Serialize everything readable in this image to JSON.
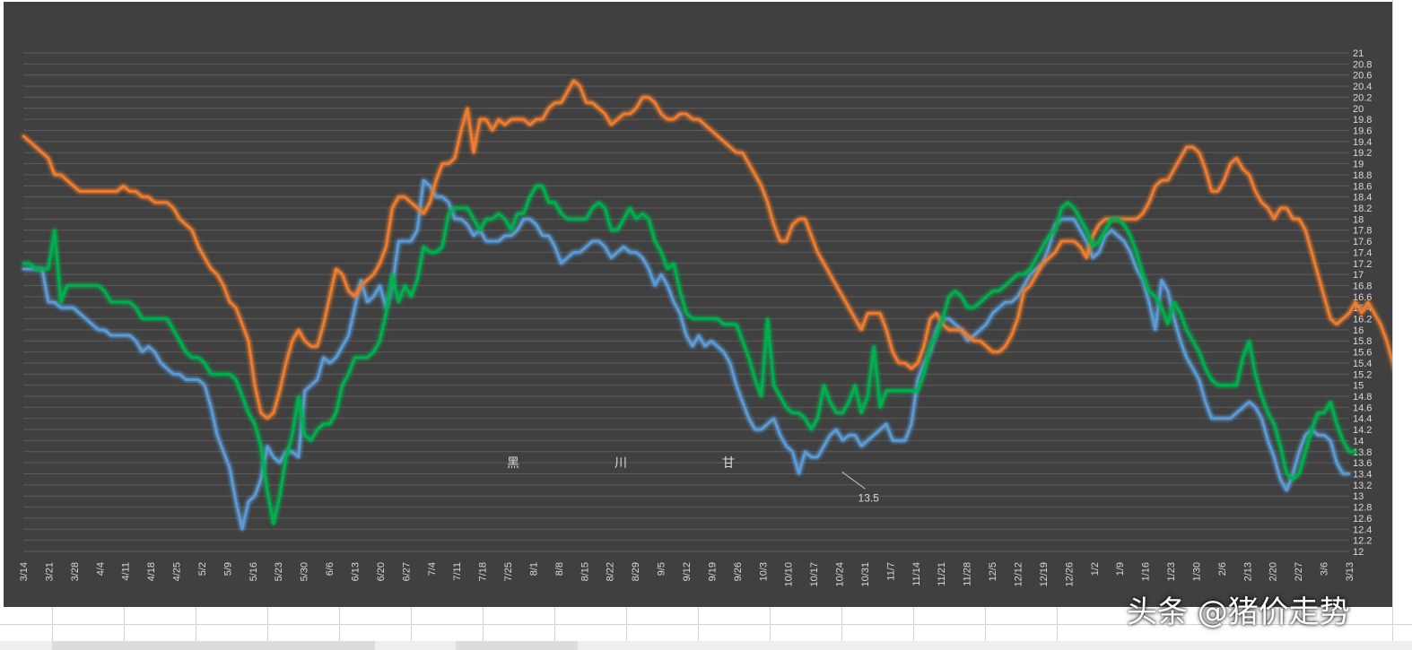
{
  "watermark": "头条 @猪价走势",
  "colors": {
    "background": "#404040",
    "grid": "#5c5c5c",
    "text": "#d9d9d9",
    "black": "#5b9bd5",
    "chuan": "#ed7d31",
    "gan": "#00b050"
  },
  "chart_data": {
    "type": "line",
    "title": "",
    "xlabel": "",
    "ylabel": "",
    "ylim": [
      12,
      21
    ],
    "ytick_step": 0.2,
    "ytick_labels_every": 0.2,
    "y_axis_position": "right",
    "grid": true,
    "legend": "center",
    "x_tick_labels": [
      "3/14",
      "3/21",
      "3/28",
      "4/4",
      "4/11",
      "4/18",
      "4/25",
      "5/2",
      "5/9",
      "5/16",
      "5/23",
      "5/30",
      "6/6",
      "6/13",
      "6/20",
      "6/27",
      "7/4",
      "7/11",
      "7/18",
      "7/25",
      "8/1",
      "8/8",
      "8/15",
      "8/22",
      "8/29",
      "9/5",
      "9/12",
      "9/19",
      "9/26",
      "10/3",
      "10/10",
      "10/17",
      "10/24",
      "10/31",
      "11/7",
      "11/14",
      "11/21",
      "11/28",
      "12/5",
      "12/12",
      "12/19",
      "12/26",
      "1/2",
      "1/9",
      "1/16",
      "1/23",
      "1/30",
      "2/6",
      "2/13",
      "2/20",
      "2/27",
      "3/6",
      "3/13"
    ],
    "annotation": {
      "text": "13.5",
      "at_label": "10/24"
    },
    "series": [
      {
        "name": "黑",
        "color": "#5b9bd5",
        "values": [
          17.1,
          17.1,
          17.1,
          17.1,
          16.5,
          16.5,
          16.4,
          16.4,
          16.4,
          16.3,
          16.2,
          16.1,
          16.0,
          16.0,
          15.9,
          15.9,
          15.9,
          15.9,
          15.8,
          15.6,
          15.7,
          15.6,
          15.4,
          15.3,
          15.2,
          15.2,
          15.1,
          15.1,
          15.1,
          15.0,
          14.6,
          14.1,
          13.8,
          13.5,
          12.9,
          12.4,
          12.9,
          13.0,
          13.3,
          13.9,
          13.7,
          13.6,
          13.8,
          13.8,
          13.7,
          14.9,
          15.0,
          15.1,
          15.5,
          15.4,
          15.5,
          15.7,
          15.9,
          16.4,
          16.9,
          16.5,
          16.6,
          16.8,
          16.4,
          16.8,
          17.6,
          17.6,
          17.6,
          17.8,
          18.7,
          18.6,
          18.4,
          18.4,
          18.3,
          18.0,
          18.0,
          17.9,
          17.7,
          17.8,
          17.6,
          17.6,
          17.6,
          17.7,
          17.7,
          17.8,
          18.0,
          18.0,
          17.9,
          17.7,
          17.7,
          17.5,
          17.2,
          17.3,
          17.4,
          17.4,
          17.5,
          17.6,
          17.6,
          17.5,
          17.3,
          17.4,
          17.5,
          17.4,
          17.4,
          17.3,
          17.1,
          16.8,
          17.0,
          16.8,
          16.5,
          16.3,
          15.9,
          15.7,
          15.9,
          15.7,
          15.8,
          15.7,
          15.6,
          15.4,
          15.0,
          14.7,
          14.4,
          14.2,
          14.2,
          14.3,
          14.4,
          14.1,
          13.9,
          13.8,
          13.4,
          13.8,
          13.7,
          13.7,
          13.9,
          14.1,
          14.2,
          14.0,
          14.1,
          14.1,
          13.9,
          14.0,
          14.1,
          14.2,
          14.3,
          14.0,
          14.0,
          14.0,
          14.3,
          15.1,
          15.4,
          15.6,
          16.0,
          16.2,
          16.2,
          16.1,
          16.0,
          15.8,
          15.9,
          16.0,
          16.1,
          16.3,
          16.4,
          16.5,
          16.5,
          16.6,
          16.8,
          17.0,
          17.1,
          17.2,
          17.5,
          17.9,
          18.0,
          18.0,
          18.0,
          17.8,
          17.6,
          17.3,
          17.4,
          17.7,
          17.8,
          17.7,
          17.6,
          17.4,
          17.1,
          16.9,
          16.5,
          16.0,
          16.9,
          16.7,
          16.2,
          15.8,
          15.5,
          15.3,
          15.1,
          14.7,
          14.4,
          14.4,
          14.4,
          14.4,
          14.5,
          14.6,
          14.7,
          14.6,
          14.4,
          14.0,
          13.7,
          13.3,
          13.1,
          13.4,
          13.8,
          14.1,
          14.2,
          14.1,
          14.1,
          14.0,
          13.6,
          13.4,
          13.4
        ]
      },
      {
        "name": "川",
        "color": "#ed7d31",
        "values": [
          19.5,
          19.4,
          19.3,
          19.2,
          19.1,
          18.8,
          18.8,
          18.7,
          18.6,
          18.5,
          18.5,
          18.5,
          18.5,
          18.5,
          18.5,
          18.5,
          18.6,
          18.5,
          18.5,
          18.4,
          18.4,
          18.3,
          18.3,
          18.3,
          18.2,
          18.0,
          17.9,
          17.8,
          17.5,
          17.3,
          17.1,
          17.0,
          16.8,
          16.5,
          16.4,
          16.1,
          15.8,
          15.0,
          14.5,
          14.4,
          14.5,
          14.9,
          15.4,
          15.8,
          16.0,
          15.8,
          15.7,
          15.7,
          16.1,
          16.6,
          17.1,
          17.0,
          16.7,
          16.6,
          16.8,
          16.9,
          17.0,
          17.2,
          17.5,
          18.2,
          18.4,
          18.4,
          18.3,
          18.2,
          18.1,
          18.3,
          18.7,
          19.0,
          19.0,
          19.1,
          19.6,
          20.0,
          19.2,
          19.8,
          19.8,
          19.6,
          19.8,
          19.7,
          19.8,
          19.8,
          19.8,
          19.7,
          19.8,
          19.8,
          20.0,
          20.1,
          20.1,
          20.3,
          20.5,
          20.4,
          20.1,
          20.1,
          20.0,
          19.9,
          19.7,
          19.8,
          19.9,
          19.9,
          20.0,
          20.2,
          20.2,
          20.1,
          19.9,
          19.8,
          19.8,
          19.9,
          19.9,
          19.8,
          19.8,
          19.7,
          19.6,
          19.5,
          19.4,
          19.3,
          19.2,
          19.2,
          19.0,
          18.8,
          18.6,
          18.3,
          17.9,
          17.6,
          17.6,
          17.9,
          18.0,
          18.0,
          17.7,
          17.4,
          17.2,
          17.0,
          16.8,
          16.6,
          16.4,
          16.2,
          16.0,
          16.3,
          16.3,
          16.3,
          16.0,
          15.6,
          15.4,
          15.4,
          15.3,
          15.4,
          15.7,
          16.2,
          16.3,
          16.1,
          16.0,
          16.0,
          16.0,
          15.9,
          15.8,
          15.8,
          15.7,
          15.6,
          15.6,
          15.7,
          15.9,
          16.2,
          16.7,
          16.8,
          17.0,
          17.2,
          17.3,
          17.4,
          17.6,
          17.6,
          17.6,
          17.5,
          17.3,
          17.7,
          17.9,
          18.0,
          18.0,
          18.0,
          18.0,
          18.0,
          18.0,
          18.1,
          18.3,
          18.6,
          18.7,
          18.7,
          18.9,
          19.1,
          19.3,
          19.3,
          19.2,
          18.9,
          18.5,
          18.5,
          18.7,
          19.0,
          19.1,
          18.9,
          18.8,
          18.5,
          18.3,
          18.2,
          18.0,
          18.2,
          18.2,
          18.0,
          18.0,
          17.8,
          17.4,
          17.0,
          16.6,
          16.2,
          16.1,
          16.2,
          16.3,
          16.5,
          16.3,
          16.5,
          16.3,
          16.1,
          15.8,
          15.4,
          15.0,
          14.7,
          14.7,
          14.7,
          15.0,
          15.5,
          15.9,
          15.8,
          15.5,
          15.2,
          14.8,
          14.8,
          14.9,
          14.9
        ]
      },
      {
        "name": "甘",
        "color": "#00b050",
        "values": [
          17.2,
          17.2,
          17.1,
          17.1,
          17.1,
          17.8,
          16.5,
          16.8,
          16.8,
          16.8,
          16.8,
          16.8,
          16.8,
          16.7,
          16.5,
          16.5,
          16.5,
          16.5,
          16.4,
          16.2,
          16.2,
          16.2,
          16.2,
          16.2,
          16.0,
          15.8,
          15.6,
          15.5,
          15.5,
          15.4,
          15.2,
          15.2,
          15.2,
          15.2,
          15.1,
          14.8,
          14.5,
          14.3,
          13.9,
          13.1,
          12.5,
          13.0,
          13.7,
          14.1,
          14.8,
          14.1,
          14.0,
          14.2,
          14.3,
          14.3,
          14.5,
          15.0,
          15.2,
          15.5,
          15.5,
          15.5,
          15.6,
          15.8,
          16.3,
          17.0,
          16.5,
          16.8,
          16.6,
          16.9,
          17.5,
          17.4,
          17.4,
          17.5,
          18.1,
          18.2,
          18.2,
          18.2,
          18.0,
          17.8,
          18.0,
          18.0,
          18.1,
          18.0,
          17.8,
          18.1,
          18.1,
          18.4,
          18.6,
          18.6,
          18.3,
          18.3,
          18.1,
          18.0,
          18.0,
          18.0,
          18.0,
          18.2,
          18.3,
          18.2,
          17.8,
          17.8,
          18.0,
          18.2,
          18.0,
          18.1,
          18.0,
          17.6,
          17.4,
          17.1,
          17.2,
          16.7,
          16.3,
          16.2,
          16.2,
          16.2,
          16.2,
          16.2,
          16.1,
          16.1,
          16.1,
          15.8,
          15.5,
          15.1,
          14.8,
          16.2,
          15.0,
          14.8,
          14.6,
          14.5,
          14.5,
          14.4,
          14.2,
          14.4,
          15.0,
          14.7,
          14.5,
          14.5,
          14.7,
          15.0,
          14.5,
          14.8,
          15.7,
          14.6,
          14.9,
          14.9,
          14.9,
          14.9,
          14.9,
          14.9,
          15.2,
          15.7,
          15.9,
          16.2,
          16.6,
          16.7,
          16.6,
          16.4,
          16.4,
          16.5,
          16.6,
          16.7,
          16.7,
          16.8,
          16.9,
          17.0,
          17.0,
          17.1,
          17.3,
          17.5,
          17.7,
          17.8,
          18.2,
          18.3,
          18.2,
          18.0,
          17.8,
          17.5,
          17.6,
          17.8,
          18.0,
          18.0,
          17.9,
          17.7,
          17.4,
          17.0,
          16.7,
          16.6,
          16.4,
          16.1,
          16.5,
          16.3,
          16.0,
          15.8,
          15.6,
          15.3,
          15.1,
          15.0,
          15.0,
          15.0,
          15.0,
          15.5,
          15.8,
          15.2,
          14.8,
          14.5,
          14.3,
          13.9,
          13.4,
          13.3,
          13.4,
          13.8,
          14.2,
          14.5,
          14.5,
          14.7,
          14.3,
          14.0,
          13.8,
          13.8
        ]
      }
    ]
  }
}
